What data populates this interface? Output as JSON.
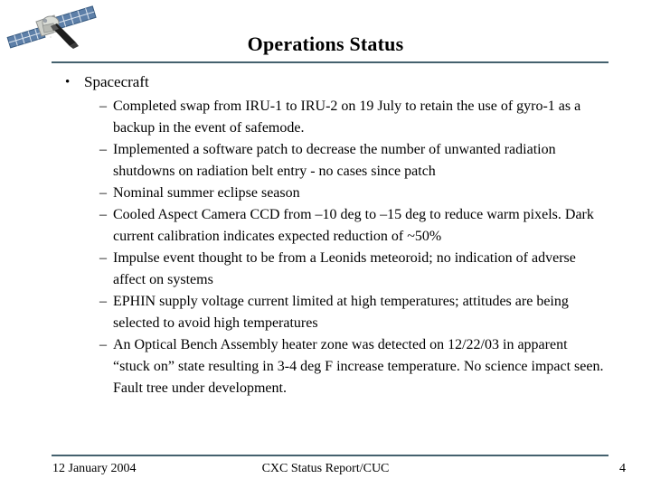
{
  "slide": {
    "title": "Operations Status",
    "markers": {
      "bullet": "•",
      "dash": "–"
    },
    "section": {
      "label": "Spacecraft",
      "items": [
        "Completed swap from IRU-1 to IRU-2 on 19 July to retain the use of gyro-1 as a backup in the event of safemode.",
        "Implemented a software patch to decrease the number of unwanted radiation shutdowns on radiation belt entry - no cases since patch",
        "Nominal summer eclipse season",
        "Cooled Aspect Camera CCD from –10 deg to –15 deg to reduce warm pixels. Dark current calibration indicates expected reduction of ~50%",
        "Impulse event thought to be from a Leonids meteoroid; no indication of adverse affect on systems",
        "EPHIN supply voltage current limited at high temperatures; attitudes are being selected to avoid high temperatures",
        "An Optical Bench Assembly heater zone was detected on 12/22/03 in apparent “stuck on” state resulting in 3-4 deg F increase temperature. No science impact seen. Fault tree under development."
      ]
    },
    "footer": {
      "date": "12 January 2004",
      "center": "CXC Status Report/CUC",
      "page": "4"
    },
    "colors": {
      "rule": "#44616e",
      "background": "#ffffff",
      "text": "#000000",
      "solar_panel": "#5d7fa8"
    },
    "logo_name": "chandra-spacecraft-illustration"
  }
}
